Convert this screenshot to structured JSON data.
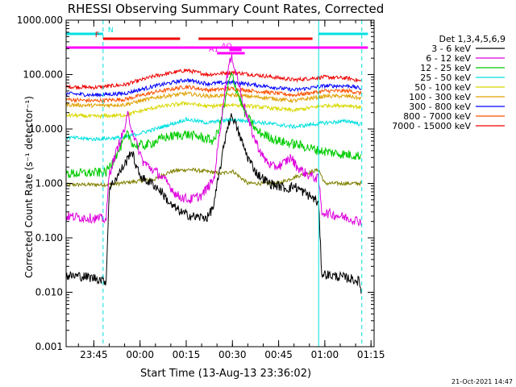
{
  "chart_data": {
    "type": "line",
    "title": "RHESSI Observing Summary Count Rates, Corrected",
    "xlabel": "Start Time (13-Aug-13 23:36:02)",
    "ylabel": "Corrected Count Rate (s⁻¹ detector⁻¹)",
    "xlim": [
      "23:36",
      "01:16"
    ],
    "x_ticks": [
      "23:45",
      "00:00",
      "00:15",
      "00:30",
      "00:45",
      "01:00",
      "01:15"
    ],
    "yscale": "log",
    "ylim": [
      0.001,
      1000
    ],
    "y_ticks": [
      "0.001",
      "0.010",
      "0.100",
      "1.000",
      "10.000",
      "100.000",
      "1000.000"
    ],
    "legend_title": "Det 1,3,4,5,6,9",
    "legend_position": "right",
    "grid": false,
    "timestamp": "21-Oct-2021 14:47",
    "series": [
      {
        "name": "3 - 6 keV",
        "color": "#000000",
        "points": [
          [
            "23:36",
            0.02
          ],
          [
            "23:40",
            0.02
          ],
          [
            "23:46",
            0.018
          ],
          [
            "23:49",
            0.016
          ],
          [
            "23:50",
            0.8
          ],
          [
            "23:52",
            1.2
          ],
          [
            "23:54",
            1.8
          ],
          [
            "23:56",
            2.8
          ],
          [
            "23:57",
            4
          ],
          [
            "23:58",
            3
          ],
          [
            "23:59",
            1.8
          ],
          [
            "00:01",
            1.2
          ],
          [
            "00:04",
            1.0
          ],
          [
            "00:07",
            0.7
          ],
          [
            "00:10",
            0.4
          ],
          [
            "00:14",
            0.28
          ],
          [
            "00:18",
            0.24
          ],
          [
            "00:22",
            0.24
          ],
          [
            "00:24",
            0.4
          ],
          [
            "00:25",
            0.9
          ],
          [
            "00:27",
            4
          ],
          [
            "00:28",
            9
          ],
          [
            "00:29",
            14
          ],
          [
            "00:30",
            18
          ],
          [
            "00:31",
            12
          ],
          [
            "00:33",
            6
          ],
          [
            "00:35",
            3
          ],
          [
            "00:38",
            1.5
          ],
          [
            "00:42",
            1.0
          ],
          [
            "00:45",
            0.9
          ],
          [
            "00:48",
            0.8
          ],
          [
            "00:50",
            0.9
          ],
          [
            "00:53",
            0.7
          ],
          [
            "00:57",
            0.5
          ],
          [
            "00:58",
            0.4
          ],
          [
            "00:59",
            0.022
          ],
          [
            "01:03",
            0.02
          ],
          [
            "01:08",
            0.018
          ],
          [
            "01:11",
            0.016
          ],
          [
            "01:12",
            0.01
          ]
        ]
      },
      {
        "name": "6 - 12 keV",
        "color": "#dd00dd",
        "points": [
          [
            "23:36",
            0.25
          ],
          [
            "23:49",
            0.22
          ],
          [
            "23:50",
            1.5
          ],
          [
            "23:53",
            5
          ],
          [
            "23:55",
            10
          ],
          [
            "23:56",
            18
          ],
          [
            "23:57",
            12
          ],
          [
            "23:59",
            5
          ],
          [
            "00:01",
            2.5
          ],
          [
            "00:03",
            2.0
          ],
          [
            "00:06",
            1.5
          ],
          [
            "00:09",
            1.0
          ],
          [
            "00:12",
            0.6
          ],
          [
            "00:16",
            0.5
          ],
          [
            "00:20",
            0.6
          ],
          [
            "00:24",
            1.2
          ],
          [
            "00:26",
            10
          ],
          [
            "00:28",
            80
          ],
          [
            "00:29",
            160
          ],
          [
            "00:30",
            200
          ],
          [
            "00:31",
            120
          ],
          [
            "00:33",
            40
          ],
          [
            "00:35",
            15
          ],
          [
            "00:37",
            7
          ],
          [
            "00:40",
            3
          ],
          [
            "00:43",
            2
          ],
          [
            "00:46",
            2.2
          ],
          [
            "00:49",
            3
          ],
          [
            "00:51",
            2
          ],
          [
            "00:54",
            1.5
          ],
          [
            "00:58",
            1.2
          ],
          [
            "00:59",
            0.3
          ],
          [
            "01:05",
            0.25
          ],
          [
            "01:12",
            0.2
          ]
        ]
      },
      {
        "name": "12 - 25 keV",
        "color": "#00cc00",
        "points": [
          [
            "23:36",
            1.5
          ],
          [
            "23:49",
            1.6
          ],
          [
            "23:51",
            2.5
          ],
          [
            "23:56",
            8
          ],
          [
            "23:58",
            5
          ],
          [
            "00:02",
            5
          ],
          [
            "00:08",
            7
          ],
          [
            "00:15",
            8
          ],
          [
            "00:20",
            7
          ],
          [
            "00:24",
            6
          ],
          [
            "00:26",
            12
          ],
          [
            "00:28",
            40
          ],
          [
            "00:29",
            80
          ],
          [
            "00:30",
            100
          ],
          [
            "00:31",
            60
          ],
          [
            "00:34",
            20
          ],
          [
            "00:38",
            9
          ],
          [
            "00:45",
            6
          ],
          [
            "00:52",
            5
          ],
          [
            "00:58",
            4
          ],
          [
            "01:05",
            3.5
          ],
          [
            "01:12",
            3.2
          ]
        ]
      },
      {
        "name": "25 - 50 keV",
        "color": "#00e0e0",
        "points": [
          [
            "23:36",
            7
          ],
          [
            "23:45",
            6.5
          ],
          [
            "23:55",
            7
          ],
          [
            "00:05",
            10
          ],
          [
            "00:15",
            15
          ],
          [
            "00:22",
            13
          ],
          [
            "00:30",
            15
          ],
          [
            "00:40",
            13
          ],
          [
            "00:50",
            11
          ],
          [
            "01:00",
            13
          ],
          [
            "01:08",
            14
          ],
          [
            "01:12",
            12
          ]
        ]
      },
      {
        "name": "50 - 100 keV",
        "color": "#d8d800",
        "points": [
          [
            "23:36",
            18
          ],
          [
            "23:45",
            17
          ],
          [
            "23:55",
            18
          ],
          [
            "00:05",
            25
          ],
          [
            "00:15",
            30
          ],
          [
            "00:22",
            26
          ],
          [
            "00:30",
            28
          ],
          [
            "00:40",
            25
          ],
          [
            "00:50",
            22
          ],
          [
            "01:00",
            27
          ],
          [
            "01:08",
            27
          ],
          [
            "01:12",
            25
          ]
        ]
      },
      {
        "name": "100 - 300 keV",
        "color": "#e0a000",
        "points": [
          [
            "23:36",
            28
          ],
          [
            "23:45",
            27
          ],
          [
            "23:55",
            28
          ],
          [
            "00:05",
            38
          ],
          [
            "00:15",
            45
          ],
          [
            "00:22",
            40
          ],
          [
            "00:30",
            42
          ],
          [
            "00:40",
            38
          ],
          [
            "00:50",
            33
          ],
          [
            "01:00",
            40
          ],
          [
            "01:08",
            40
          ],
          [
            "01:12",
            36
          ]
        ]
      },
      {
        "name": "300 - 800 keV",
        "color": "#0000ff",
        "points": [
          [
            "23:36",
            45
          ],
          [
            "23:45",
            42
          ],
          [
            "23:55",
            45
          ],
          [
            "00:05",
            62
          ],
          [
            "00:15",
            80
          ],
          [
            "00:22",
            68
          ],
          [
            "00:30",
            72
          ],
          [
            "00:40",
            62
          ],
          [
            "00:50",
            52
          ],
          [
            "01:00",
            62
          ],
          [
            "01:08",
            62
          ],
          [
            "01:12",
            55
          ]
        ]
      },
      {
        "name": "800 - 7000 keV",
        "color": "#ff5000",
        "points": [
          [
            "23:36",
            35
          ],
          [
            "23:45",
            33
          ],
          [
            "23:55",
            35
          ],
          [
            "00:05",
            48
          ],
          [
            "00:15",
            60
          ],
          [
            "00:22",
            52
          ],
          [
            "00:30",
            55
          ],
          [
            "00:40",
            48
          ],
          [
            "00:50",
            42
          ],
          [
            "01:00",
            50
          ],
          [
            "01:08",
            50
          ],
          [
            "01:12",
            45
          ]
        ]
      },
      {
        "name": "7000 - 15000 keV",
        "color": "#ee0000",
        "points": [
          [
            "23:36",
            60
          ],
          [
            "23:45",
            58
          ],
          [
            "23:55",
            65
          ],
          [
            "00:05",
            95
          ],
          [
            "00:15",
            120
          ],
          [
            "00:22",
            100
          ],
          [
            "00:30",
            110
          ],
          [
            "00:40",
            95
          ],
          [
            "00:50",
            80
          ],
          [
            "01:00",
            90
          ],
          [
            "01:08",
            85
          ],
          [
            "01:12",
            75
          ]
        ]
      },
      {
        "name": "",
        "color": "#808000",
        "points": [
          [
            "23:36",
            0.95
          ],
          [
            "23:49",
            0.95
          ],
          [
            "23:50",
            0.95
          ],
          [
            "00:05",
            1.2
          ],
          [
            "00:08",
            1.5
          ],
          [
            "00:11",
            1.7
          ],
          [
            "00:16",
            1.8
          ],
          [
            "00:20",
            1.7
          ],
          [
            "00:24",
            1.6
          ],
          [
            "00:26",
            1.5
          ],
          [
            "00:30",
            1.7
          ],
          [
            "00:35",
            1.0
          ],
          [
            "00:40",
            1.0
          ],
          [
            "00:45",
            1.0
          ],
          [
            "00:50",
            1.3
          ],
          [
            "00:55",
            1.6
          ],
          [
            "00:58",
            1.8
          ],
          [
            "01:00",
            1.0
          ],
          [
            "01:12",
            1.0
          ]
        ]
      }
    ],
    "flag_bars": [
      {
        "label": "N",
        "color": "#00e0e0",
        "segments": [
          [
            "23:36",
            "23:48"
          ],
          [
            "00:58",
            "01:14"
          ]
        ]
      },
      {
        "label": "F",
        "color": "#ee0000",
        "segments": [
          [
            "23:48",
            "00:13"
          ],
          [
            "00:19",
            "00:56"
          ]
        ]
      },
      {
        "label": "",
        "color": "#ff00ff",
        "segments": [
          [
            "23:36",
            "01:14"
          ]
        ]
      },
      {
        "label": "A1",
        "color": "#ff00ff",
        "segments": [
          [
            "00:25",
            "00:34"
          ]
        ]
      },
      {
        "label": "AQ",
        "color": "#ff00ff",
        "segments": [
          [
            "00:29",
            "00:33"
          ]
        ]
      }
    ],
    "vlines": [
      {
        "time": "23:48",
        "style": "dashed",
        "color": "#00e0e0"
      },
      {
        "time": "00:58",
        "style": "solid",
        "color": "#00e0e0"
      },
      {
        "time": "01:12",
        "style": "dashed",
        "color": "#00e0e0"
      }
    ]
  }
}
